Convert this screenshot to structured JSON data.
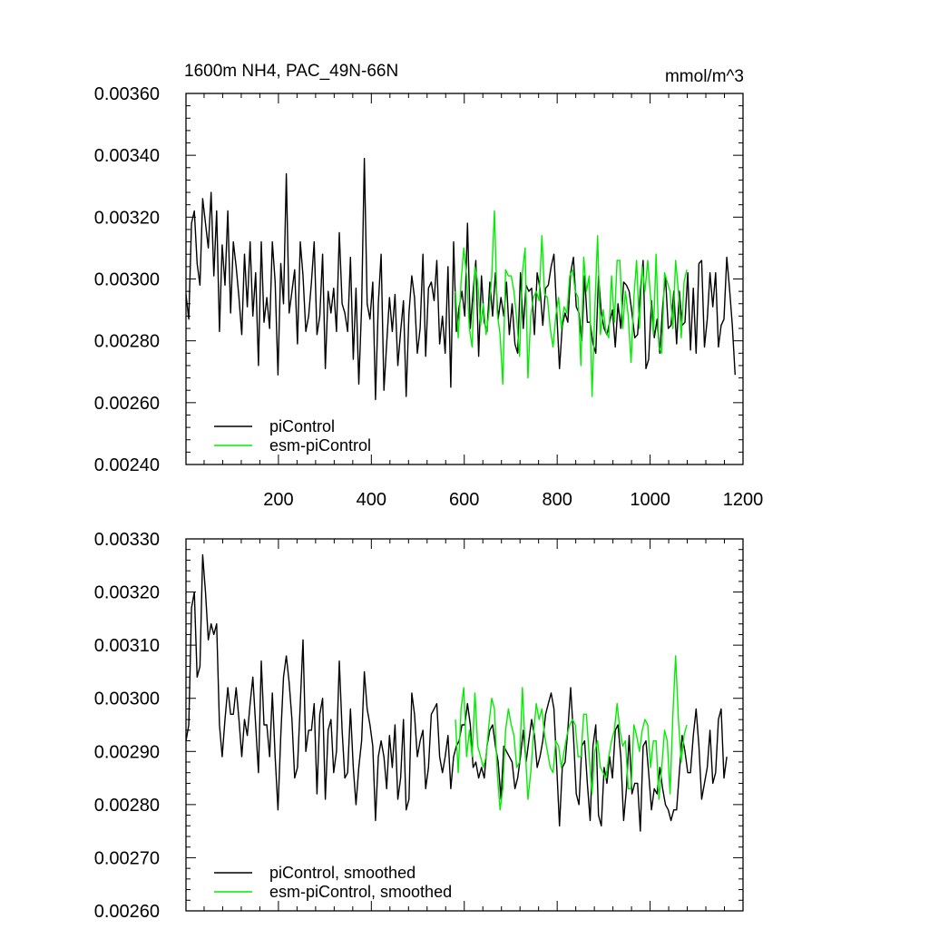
{
  "colors": {
    "piControl": "#000000",
    "esm": "#00ee00"
  },
  "chart_data": [
    {
      "type": "line",
      "title": "1600m NH4, PAC_49N-66N",
      "units": "mmol/m^3",
      "xlim": [
        1,
        1200
      ],
      "ylim": [
        0.0024,
        0.0036
      ],
      "x_ticks": [
        200,
        400,
        600,
        800,
        1000,
        1200
      ],
      "x_tick_labels": [
        "200",
        "400",
        "600",
        "800",
        "1000",
        "1200"
      ],
      "y_ticks": [
        0.0024,
        0.0026,
        0.0028,
        0.003,
        0.0032,
        0.0034,
        0.0036
      ],
      "y_tick_labels": [
        "0.00240",
        "0.00260",
        "0.00280",
        "0.00300",
        "0.00320",
        "0.00340",
        "0.00360"
      ],
      "legend_position": "bottom-left",
      "series": [
        {
          "name": "piControl",
          "color_key": "piControl",
          "x_start": 1,
          "x_step": 6,
          "values": [
            0.00295,
            0.00287,
            0.00318,
            0.00322,
            0.00305,
            0.00298,
            0.00326,
            0.00318,
            0.0031,
            0.00328,
            0.00301,
            0.00322,
            0.00283,
            0.00311,
            0.00298,
            0.00322,
            0.00289,
            0.00312,
            0.00304,
            0.00294,
            0.00282,
            0.00308,
            0.00291,
            0.00312,
            0.00288,
            0.00302,
            0.00272,
            0.00312,
            0.00286,
            0.00294,
            0.00284,
            0.00312,
            0.00299,
            0.00269,
            0.00305,
            0.00292,
            0.00334,
            0.00289,
            0.00296,
            0.00303,
            0.00279,
            0.00312,
            0.00301,
            0.00283,
            0.00288,
            0.00299,
            0.00312,
            0.00282,
            0.00288,
            0.00308,
            0.00271,
            0.00296,
            0.00289,
            0.00297,
            0.00283,
            0.00315,
            0.00292,
            0.00289,
            0.00283,
            0.00307,
            0.00274,
            0.00297,
            0.00266,
            0.00291,
            0.00339,
            0.00292,
            0.00287,
            0.00299,
            0.00261,
            0.00292,
            0.00308,
            0.00264,
            0.00279,
            0.00294,
            0.00283,
            0.00295,
            0.00272,
            0.00283,
            0.00293,
            0.00262,
            0.00289,
            0.00301,
            0.00294,
            0.00276,
            0.00284,
            0.00308,
            0.00275,
            0.00297,
            0.00299,
            0.00293,
            0.00306,
            0.00279,
            0.00288,
            0.00276,
            0.00304,
            0.00265,
            0.00312,
            0.00283,
            0.00291,
            0.00296,
            0.00288,
            0.00318,
            0.00284,
            0.00296,
            0.00306,
            0.00275,
            0.00301,
            0.00286,
            0.00283,
            0.00299,
            0.00288,
            0.00302,
            0.00287,
            0.00294,
            0.00288,
            0.00299,
            0.00282,
            0.00292,
            0.00279,
            0.00276,
            0.00302,
            0.00284,
            0.00298,
            0.00296,
            0.00297,
            0.00282,
            0.00302,
            0.00297,
            0.00285,
            0.00297,
            0.00298,
            0.00304,
            0.00308,
            0.00289,
            0.00271,
            0.00285,
            0.00289,
            0.00286,
            0.00302,
            0.00307,
            0.00291,
            0.00289,
            0.0028,
            0.00301,
            0.00286,
            0.00286,
            0.00279,
            0.00276,
            0.00301,
            0.00289,
            0.00284,
            0.00282,
            0.00286,
            0.0029,
            0.00278,
            0.00292,
            0.00284,
            0.00299,
            0.00298,
            0.00296,
            0.00289,
            0.00281,
            0.00282,
            0.00296,
            0.00306,
            0.00271,
            0.00274,
            0.00293,
            0.00281,
            0.00287,
            0.00276,
            0.00291,
            0.00301,
            0.00284,
            0.00285,
            0.00296,
            0.00279,
            0.00296,
            0.00285,
            0.00286,
            0.00302,
            0.00277,
            0.00297,
            0.00276,
            0.00305,
            0.00306,
            0.00278,
            0.00287,
            0.00302,
            0.00291,
            0.00302,
            0.00278,
            0.00285,
            0.00287,
            0.00307,
            0.00297,
            0.00285,
            0.00269
          ]
        },
        {
          "name": "esm-piControl",
          "color_key": "esm",
          "x_start": 581,
          "x_step": 6,
          "values": [
            0.00296,
            0.00281,
            0.00299,
            0.0031,
            0.00301,
            0.00284,
            0.00278,
            0.00304,
            0.00299,
            0.00285,
            0.00292,
            0.00282,
            0.00289,
            0.00301,
            0.00322,
            0.00289,
            0.00282,
            0.00266,
            0.00303,
            0.00301,
            0.00301,
            0.00296,
            0.00287,
            0.00275,
            0.00302,
            0.0031,
            0.00268,
            0.00288,
            0.00294,
            0.00296,
            0.00293,
            0.00314,
            0.00295,
            0.00294,
            0.00284,
            0.00278,
            0.00288,
            0.00294,
            0.00284,
            0.00291,
            0.00289,
            0.00301,
            0.00303,
            0.00296,
            0.00294,
            0.00272,
            0.00307,
            0.00296,
            0.00301,
            0.00262,
            0.0029,
            0.00314,
            0.00282,
            0.0029,
            0.00283,
            0.00281,
            0.00301,
            0.00286,
            0.00306,
            0.00306,
            0.00284,
            0.00296,
            0.00288,
            0.00273,
            0.00294,
            0.00306,
            0.00284,
            0.00304,
            0.00296,
            0.00306,
            0.00294,
            0.00282,
            0.00308,
            0.00278,
            0.00276,
            0.00302,
            0.00299,
            0.00296,
            0.00284,
            0.00306,
            0.00296,
            0.00281,
            0.00299,
            0.00303
          ]
        }
      ]
    },
    {
      "type": "line",
      "xlim": [
        1,
        1200
      ],
      "ylim": [
        0.0026,
        0.0033
      ],
      "x_ticks": [
        200,
        400,
        600,
        800,
        1000,
        1200
      ],
      "y_ticks": [
        0.0026,
        0.0027,
        0.0028,
        0.0029,
        0.003,
        0.0031,
        0.0032,
        0.0033
      ],
      "y_tick_labels": [
        "0.00260",
        "0.00270",
        "0.00280",
        "0.00290",
        "0.00300",
        "0.00310",
        "0.00320",
        "0.00330"
      ],
      "legend_position": "bottom-left",
      "series": [
        {
          "name": "piControl, smoothed",
          "color_key": "piControl",
          "x_start": 1,
          "x_step": 6,
          "values": [
            0.00292,
            0.00295,
            0.00317,
            0.0032,
            0.00304,
            0.00306,
            0.00327,
            0.0032,
            0.00311,
            0.00314,
            0.00312,
            0.00314,
            0.00295,
            0.00289,
            0.00296,
            0.00302,
            0.00297,
            0.00297,
            0.00302,
            0.00296,
            0.00289,
            0.00296,
            0.00293,
            0.00299,
            0.00304,
            0.00295,
            0.00286,
            0.00307,
            0.00295,
            0.00295,
            0.00289,
            0.00301,
            0.00289,
            0.00279,
            0.00293,
            0.00304,
            0.00308,
            0.00303,
            0.00296,
            0.00285,
            0.00287,
            0.00299,
            0.00311,
            0.0029,
            0.00294,
            0.00294,
            0.00299,
            0.00282,
            0.00297,
            0.003,
            0.00281,
            0.00294,
            0.00296,
            0.00286,
            0.0029,
            0.00307,
            0.00294,
            0.00285,
            0.00286,
            0.00298,
            0.00287,
            0.0028,
            0.00287,
            0.00292,
            0.00305,
            0.00298,
            0.00295,
            0.00291,
            0.00277,
            0.00289,
            0.00292,
            0.00289,
            0.00283,
            0.00293,
            0.00287,
            0.00295,
            0.00281,
            0.00285,
            0.00296,
            0.00279,
            0.00281,
            0.00301,
            0.00297,
            0.00289,
            0.00292,
            0.00294,
            0.00283,
            0.00287,
            0.00297,
            0.00298,
            0.00299,
            0.00289,
            0.00286,
            0.00289,
            0.00293,
            0.00283,
            0.00289,
            0.00291,
            0.00292,
            0.00295,
            0.00295,
            0.00299,
            0.00295,
            0.00287,
            0.00288,
            0.00285,
            0.00287,
            0.00285,
            0.00291,
            0.00294,
            0.00295,
            0.00291,
            0.00288,
            0.00281,
            0.00291,
            0.0029,
            0.00289,
            0.00288,
            0.00283,
            0.00285,
            0.00289,
            0.00294,
            0.00288,
            0.00292,
            0.00296,
            0.00293,
            0.00287,
            0.00289,
            0.00292,
            0.00297,
            0.00299,
            0.00301,
            0.00298,
            0.00287,
            0.00276,
            0.00287,
            0.00288,
            0.00294,
            0.00302,
            0.00293,
            0.00282,
            0.0028,
            0.00291,
            0.00292,
            0.00284,
            0.00277,
            0.00291,
            0.00295,
            0.00278,
            0.00276,
            0.00287,
            0.00284,
            0.00289,
            0.00285,
            0.00294,
            0.00295,
            0.00289,
            0.00277,
            0.00283,
            0.00293,
            0.00282,
            0.00284,
            0.00284,
            0.00275,
            0.00291,
            0.00292,
            0.00286,
            0.00279,
            0.00283,
            0.00282,
            0.00287,
            0.00283,
            0.0028,
            0.00279,
            0.00277,
            0.00279,
            0.00279,
            0.00286,
            0.00293,
            0.0029,
            0.00286,
            0.00286,
            0.00293,
            0.00298,
            0.00291,
            0.00281,
            0.00284,
            0.00287,
            0.00294,
            0.00284,
            0.00286,
            0.00296,
            0.00298,
            0.00285,
            0.00289
          ]
        },
        {
          "name": "esm-piControl, smoothed",
          "color_key": "esm",
          "x_start": 581,
          "x_step": 6,
          "values": [
            0.00296,
            0.00286,
            0.00298,
            0.00302,
            0.00289,
            0.00294,
            0.00289,
            0.00301,
            0.00291,
            0.00289,
            0.00287,
            0.00289,
            0.00295,
            0.003,
            0.00298,
            0.00286,
            0.00279,
            0.00283,
            0.00294,
            0.00298,
            0.00295,
            0.00293,
            0.00287,
            0.00288,
            0.00302,
            0.00291,
            0.00281,
            0.00286,
            0.00293,
            0.00299,
            0.00296,
            0.00298,
            0.00293,
            0.0029,
            0.00287,
            0.00286,
            0.00292,
            0.00291,
            0.00287,
            0.0029,
            0.00293,
            0.00295,
            0.00296,
            0.00295,
            0.00289,
            0.00289,
            0.00297,
            0.00297,
            0.00289,
            0.00282,
            0.0029,
            0.00292,
            0.00287,
            0.00286,
            0.00285,
            0.00289,
            0.00292,
            0.00294,
            0.00299,
            0.00294,
            0.00291,
            0.00292,
            0.00283,
            0.00283,
            0.00295,
            0.00293,
            0.0029,
            0.00294,
            0.00296,
            0.00295,
            0.00287,
            0.00292,
            0.00292,
            0.00281,
            0.00287,
            0.00294,
            0.00292,
            0.00282,
            0.00297,
            0.00308,
            0.00296,
            0.00288,
            0.00293,
            0.00295
          ]
        }
      ]
    }
  ]
}
